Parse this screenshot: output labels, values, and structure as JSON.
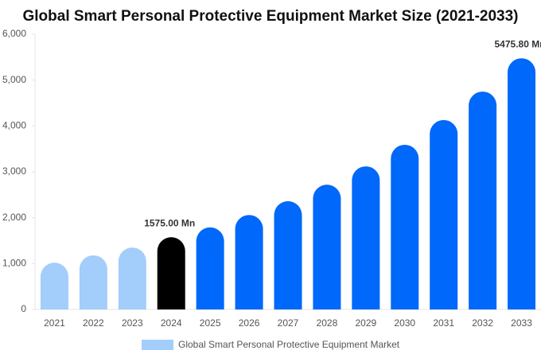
{
  "chart_data": {
    "type": "bar",
    "title": "Global Smart Personal Protective Equipment Market Size (2021-2033)",
    "categories": [
      "2021",
      "2022",
      "2023",
      "2024",
      "2025",
      "2026",
      "2027",
      "2028",
      "2029",
      "2030",
      "2031",
      "2032",
      "2033"
    ],
    "series": [
      {
        "name": "Global Smart Personal Protective Equipment Market",
        "color": "#a3cdfb",
        "values": [
          1020,
          1180,
          1350,
          1575,
          1790,
          2060,
          2360,
          2720,
          3120,
          3590,
          4130,
          4750,
          5475.8
        ],
        "value_labels": [
          null,
          null,
          null,
          "1575.00 Mn",
          null,
          null,
          null,
          null,
          null,
          null,
          null,
          null,
          "5475.80 Mn"
        ],
        "colors": [
          "#a3cdfb",
          "#a3cdfb",
          "#a3cdfb",
          "#000000",
          "#0068fa",
          "#0068fa",
          "#0068fa",
          "#0068fa",
          "#0068fa",
          "#0068fa",
          "#0068fa",
          "#0068fa",
          "#0068fa"
        ]
      }
    ],
    "ylim": [
      0,
      6000
    ],
    "yticks": [
      0,
      {
        "value": 1000,
        "label": "1,000"
      },
      {
        "value": 2000,
        "label": "2,000"
      },
      {
        "value": 3000,
        "label": "3,000"
      },
      {
        "value": 4000,
        "label": "4,000"
      },
      {
        "value": 5000,
        "label": "5,000"
      },
      {
        "value": 6000,
        "label": "6,000"
      }
    ],
    "grid": false
  }
}
